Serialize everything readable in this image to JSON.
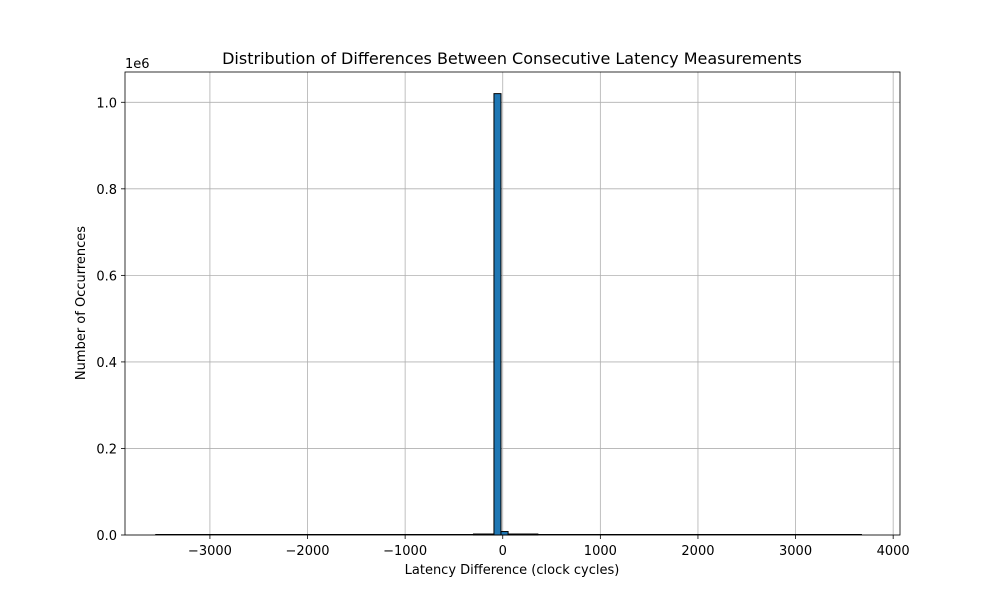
{
  "chart_data": {
    "type": "bar",
    "title": "Distribution of Differences Between Consecutive Latency Measurements",
    "xlabel": "Latency Difference (clock cycles)",
    "ylabel": "Number of Occurrences",
    "y_offset_label": "1e6",
    "xlim": [
      -3870,
      4070
    ],
    "ylim": [
      0,
      1.07
    ],
    "x_ticks": [
      -3000,
      -2000,
      -1000,
      0,
      1000,
      2000,
      3000,
      4000
    ],
    "x_tick_labels": [
      "−3000",
      "−2000",
      "−1000",
      "0",
      "1000",
      "2000",
      "3000",
      "4000"
    ],
    "y_ticks": [
      0,
      0.2,
      0.4,
      0.6,
      0.8,
      1.0
    ],
    "y_tick_labels": [
      "0.0",
      "0.2",
      "0.4",
      "0.6",
      "0.8",
      "1.0"
    ],
    "grid": true,
    "bar_color": "#1f77b4",
    "edge_color": "#000000",
    "x_range": [
      -3560,
      3680
    ],
    "bins": [
      {
        "x0": -300,
        "x1": -90,
        "value": 0.002
      },
      {
        "x0": -90,
        "x1": -18,
        "value": 1.02
      },
      {
        "x0": -18,
        "x1": 55,
        "value": 0.008
      },
      {
        "x0": 55,
        "x1": 360,
        "value": 0.002
      }
    ]
  }
}
